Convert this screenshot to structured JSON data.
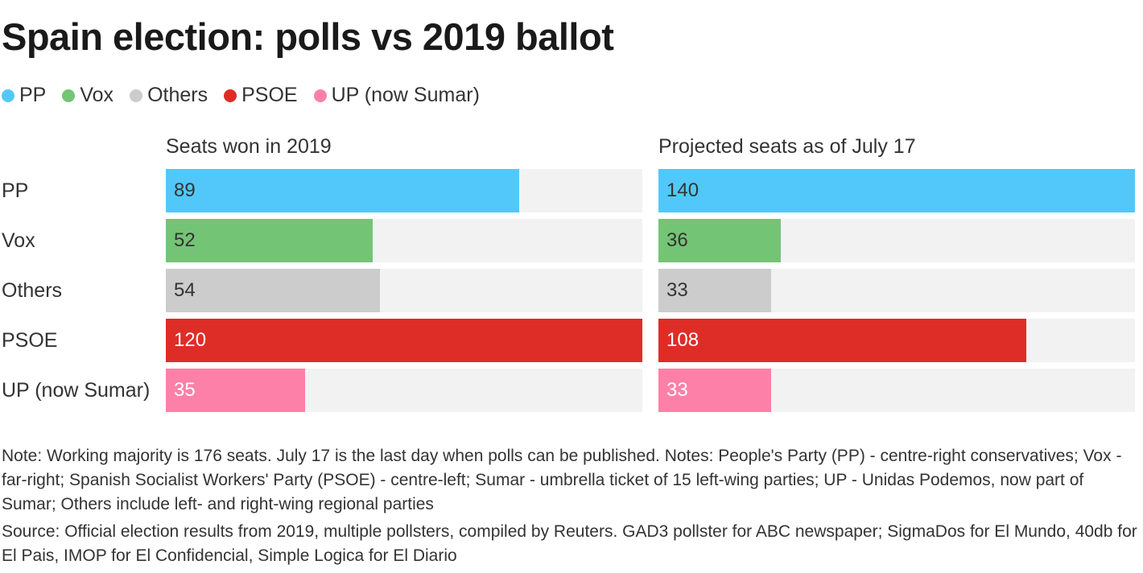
{
  "title": "Spain election: polls vs 2019 ballot",
  "legend": [
    {
      "label": "PP",
      "color": "#52c8fa"
    },
    {
      "label": "Vox",
      "color": "#74c476"
    },
    {
      "label": "Others",
      "color": "#cccccc"
    },
    {
      "label": "PSOE",
      "color": "#de2d26"
    },
    {
      "label": "UP (now Sumar)",
      "color": "#fd80a8"
    }
  ],
  "chart_data": [
    {
      "type": "bar",
      "orientation": "horizontal",
      "title": "Seats won in 2019",
      "categories": [
        "PP",
        "Vox",
        "Others",
        "PSOE",
        "UP (now Sumar)"
      ],
      "values": [
        89,
        52,
        54,
        120,
        35
      ],
      "xlim": [
        0,
        120
      ],
      "colors": [
        "#52c8fa",
        "#74c476",
        "#cccccc",
        "#de2d26",
        "#fd80a8"
      ],
      "label_colors": [
        "#333333",
        "#333333",
        "#333333",
        "#ffffff",
        "#ffffff"
      ]
    },
    {
      "type": "bar",
      "orientation": "horizontal",
      "title": "Projected seats as of July 17",
      "categories": [
        "PP",
        "Vox",
        "Others",
        "PSOE",
        "UP (now Sumar)"
      ],
      "values": [
        140,
        36,
        33,
        108,
        33
      ],
      "xlim": [
        0,
        140
      ],
      "colors": [
        "#52c8fa",
        "#74c476",
        "#cccccc",
        "#de2d26",
        "#fd80a8"
      ],
      "label_colors": [
        "#333333",
        "#333333",
        "#333333",
        "#ffffff",
        "#ffffff"
      ]
    }
  ],
  "note": "Note: Working majority is 176 seats. July 17 is the last day when polls can be published. Notes: People's Party (PP) - centre-right conservatives; Vox - far-right; Spanish Socialist Workers' Party (PSOE) - centre-left; Sumar - umbrella ticket of 15 left-wing parties; UP - Unidas Podemos, now part of Sumar; Others include left- and right-wing regional parties",
  "source": "Source: Official election results from 2019, multiple pollsters, compiled by Reuters. GAD3 pollster for ABC newspaper; SigmaDos for El Mundo, 40db for El Pais, IMOP for El Confidencial, Simple Logica for El Diario"
}
